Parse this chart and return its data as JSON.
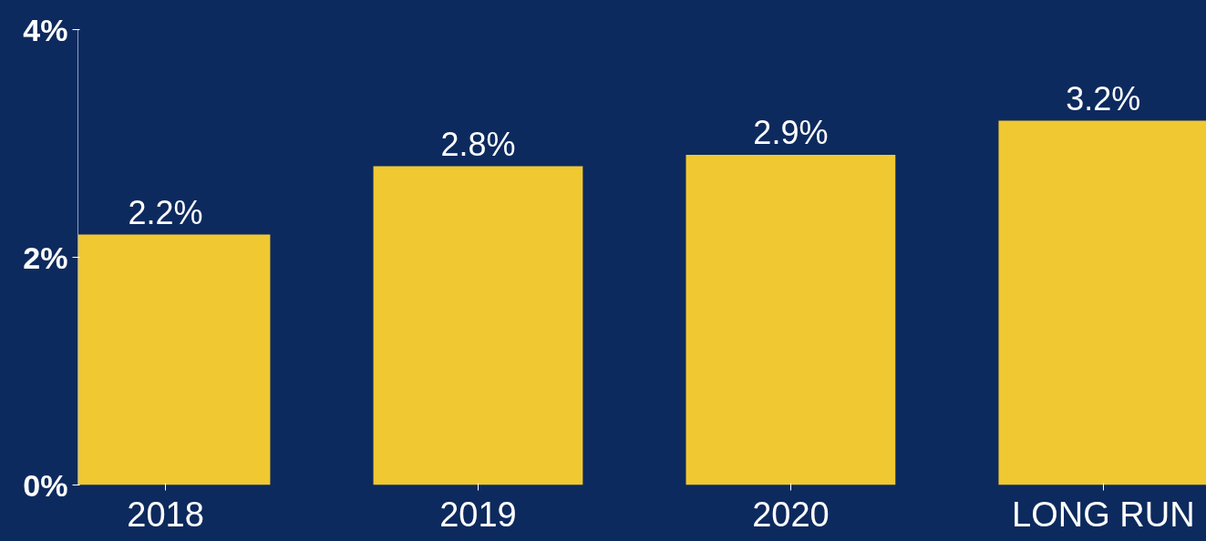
{
  "chart_data": {
    "type": "bar",
    "categories": [
      "2018",
      "2019",
      "2020",
      "LONG RUN"
    ],
    "values": [
      2.2,
      2.8,
      2.9,
      3.2
    ],
    "value_labels": [
      "2.2%",
      "2.8%",
      "2.9%",
      "3.2%"
    ],
    "color": "#f0c832",
    "ylim": [
      0,
      4
    ],
    "yticks": [
      {
        "value": 0,
        "label": "0%"
      },
      {
        "value": 2,
        "label": "2%"
      },
      {
        "value": 4,
        "label": "4%"
      }
    ],
    "grid": false
  }
}
